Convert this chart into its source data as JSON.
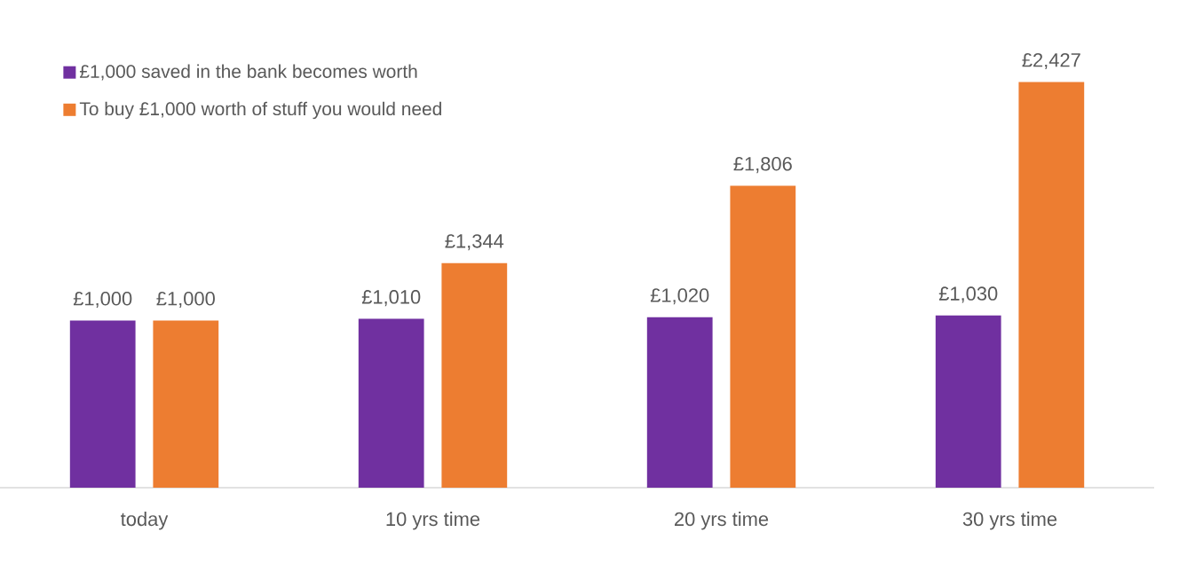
{
  "chart_data": {
    "type": "bar",
    "categories": [
      "today",
      "10 yrs time",
      "20 yrs time",
      "30 yrs time"
    ],
    "series": [
      {
        "name": "£1,000 saved in the bank becomes worth",
        "color": "#7030a0",
        "values": [
          1000,
          1010,
          1020,
          1030
        ],
        "value_labels": [
          "£1,000",
          "£1,010",
          "£1,020",
          "£1,030"
        ]
      },
      {
        "name": "To buy £1,000 worth of stuff you would need",
        "color": "#ed7d31",
        "values": [
          1000,
          1344,
          1806,
          2427
        ],
        "value_labels": [
          "£1,000",
          "£1,344",
          "£1,806",
          "£2,427"
        ]
      }
    ],
    "legend": "top left",
    "tick_labels": "x"
  }
}
